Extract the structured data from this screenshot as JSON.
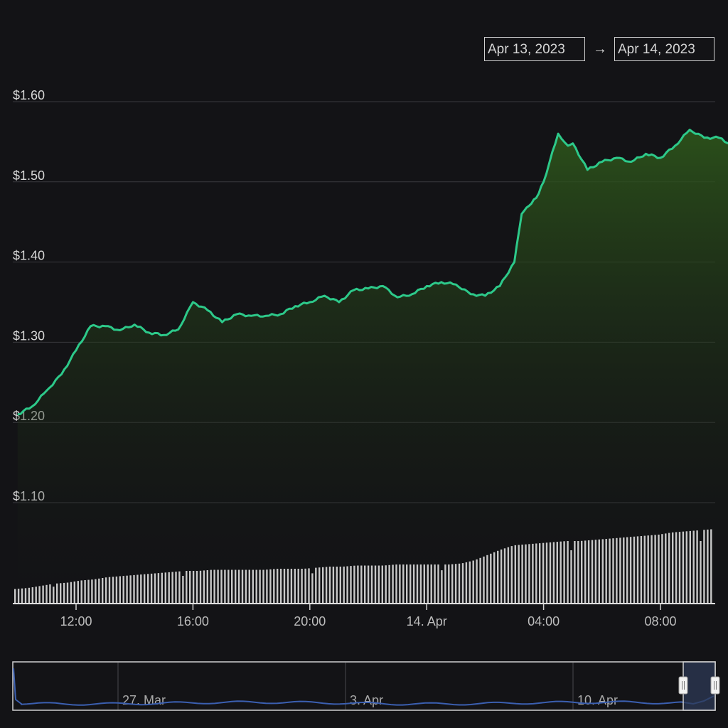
{
  "range_selector": {
    "from": "Apr 13, 2023",
    "arrow": "→",
    "to": "Apr 14, 2023"
  },
  "chart_data": {
    "type": "area",
    "title": "",
    "xlabel": "",
    "ylabel": "",
    "ylim": [
      1.06,
      1.62
    ],
    "y_ticks": [
      "$1.10",
      "$1.20",
      "$1.30",
      "$1.40",
      "$1.50",
      "$1.60"
    ],
    "y_tick_values": [
      1.1,
      1.2,
      1.3,
      1.4,
      1.5,
      1.6
    ],
    "x_range": [
      "2023-04-13T09:55",
      "2023-04-14T10:55"
    ],
    "x_ticks": [
      "12:00",
      "16:00",
      "20:00",
      "14. Apr",
      "04:00",
      "08:00"
    ],
    "x_tick_times": [
      "2023-04-13T12:00",
      "2023-04-13T16:00",
      "2023-04-13T20:00",
      "2023-04-14T00:00",
      "2023-04-14T04:00",
      "2023-04-14T08:00"
    ],
    "series": [
      {
        "values_time": [
          "2023-04-13T10:00",
          "2023-04-13T10:30",
          "2023-04-13T11:00",
          "2023-04-13T11:30",
          "2023-04-13T12:00",
          "2023-04-13T12:30",
          "2023-04-13T13:00",
          "2023-04-13T13:30",
          "2023-04-13T14:00",
          "2023-04-13T14:30",
          "2023-04-13T15:00",
          "2023-04-13T15:30",
          "2023-04-13T16:00",
          "2023-04-13T16:30",
          "2023-04-13T17:00",
          "2023-04-13T17:30",
          "2023-04-13T18:00",
          "2023-04-13T18:30",
          "2023-04-13T19:00",
          "2023-04-13T19:30",
          "2023-04-13T20:00",
          "2023-04-13T20:30",
          "2023-04-13T21:00",
          "2023-04-13T21:30",
          "2023-04-13T22:00",
          "2023-04-13T22:30",
          "2023-04-13T23:00",
          "2023-04-13T23:30",
          "2023-04-14T00:00",
          "2023-04-14T00:30",
          "2023-04-14T01:00",
          "2023-04-14T01:30",
          "2023-04-14T02:00",
          "2023-04-14T02:30",
          "2023-04-14T03:00",
          "2023-04-14T03:15",
          "2023-04-14T03:30",
          "2023-04-14T03:45",
          "2023-04-14T04:00",
          "2023-04-14T04:30",
          "2023-04-14T04:50",
          "2023-04-14T05:00",
          "2023-04-14T05:30",
          "2023-04-14T06:00",
          "2023-04-14T06:30",
          "2023-04-14T07:00",
          "2023-04-14T07:30",
          "2023-04-14T08:00",
          "2023-04-14T08:30",
          "2023-04-14T09:00",
          "2023-04-14T09:30",
          "2023-04-14T10:00",
          "2023-04-14T10:30",
          "2023-04-14T10:50"
        ],
        "values": [
          1.21,
          1.22,
          1.24,
          1.26,
          1.29,
          1.32,
          1.32,
          1.315,
          1.322,
          1.312,
          1.309,
          1.316,
          1.35,
          1.34,
          1.325,
          1.335,
          1.333,
          1.333,
          1.335,
          1.345,
          1.35,
          1.358,
          1.35,
          1.365,
          1.367,
          1.37,
          1.356,
          1.36,
          1.37,
          1.375,
          1.372,
          1.36,
          1.358,
          1.37,
          1.4,
          1.46,
          1.47,
          1.48,
          1.5,
          1.56,
          1.545,
          1.548,
          1.515,
          1.525,
          1.53,
          1.525,
          1.535,
          1.53,
          1.545,
          1.565,
          1.555,
          1.555,
          1.545,
          1.543
        ]
      }
    ],
    "volume": {
      "description": "cumulative-style volume bars rising left to right",
      "values": [
        0.13,
        0.14,
        0.16,
        0.18,
        0.19,
        0.21,
        0.22,
        0.24,
        0.25,
        0.26,
        0.27,
        0.28,
        0.29,
        0.3,
        0.3,
        0.31,
        0.31,
        0.31,
        0.31,
        0.31,
        0.32,
        0.32,
        0.32,
        0.33,
        0.34,
        0.34,
        0.35,
        0.35,
        0.35,
        0.36,
        0.36,
        0.36,
        0.36,
        0.36,
        0.37,
        0.4,
        0.45,
        0.5,
        0.54,
        0.55,
        0.56,
        0.57,
        0.58,
        0.58,
        0.59,
        0.6,
        0.61,
        0.62,
        0.63,
        0.64,
        0.66,
        0.67,
        0.68,
        0.69
      ]
    },
    "navigator": {
      "labels": [
        "27. Mar",
        "3. Apr",
        "10. Apr"
      ],
      "grid_on": true
    },
    "grid": true,
    "colors": {
      "line": "#2dc98a",
      "fill_top": "#2f5a1b",
      "background": "#131316",
      "grid": "#3a3a3e",
      "volume": "#c8c8c8",
      "navigator_line": "#3b5fb0",
      "navigator_mask": "#2d3a55"
    }
  }
}
